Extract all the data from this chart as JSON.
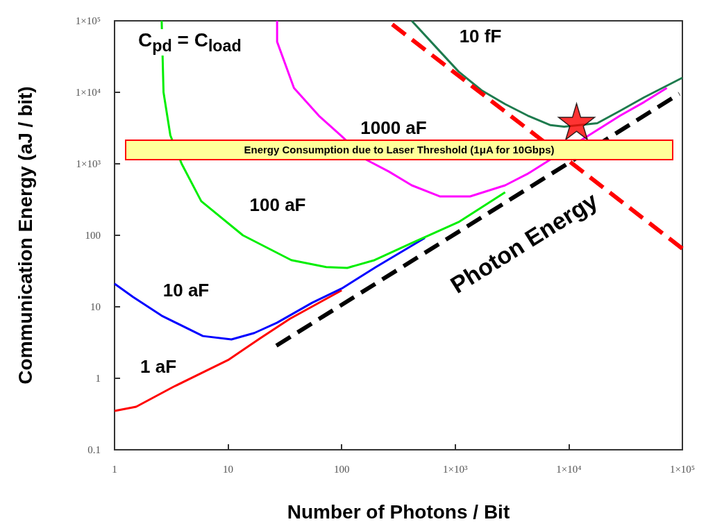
{
  "chart_data": {
    "type": "line",
    "xlabel": "Number of Photons / Bit",
    "ylabel": "Communication Energy (aJ / bit)",
    "log": "xy",
    "grid": false,
    "marker": "none",
    "line_style": "solid",
    "xlim": [
      1,
      100000
    ],
    "ylim": [
      0.1,
      100000
    ],
    "xticks": [
      1,
      10,
      100,
      {
        "value": 1000,
        "label": "1×10³"
      },
      {
        "value": 10000,
        "label": "1×10⁴"
      },
      {
        "value": 100000,
        "label": "1×10⁵"
      }
    ],
    "yticks": [
      0.1,
      1,
      10,
      100,
      {
        "value": 1000,
        "label": "1×10³"
      },
      {
        "value": 10000,
        "label": "1×10⁴"
      },
      {
        "value": 100000,
        "label": "1×10⁵"
      }
    ],
    "series": [
      {
        "color": "#ff0000",
        "x": [
          1,
          1.55,
          3.3,
          10,
          19,
          35,
          100
        ],
        "values": [
          0.35,
          0.4,
          0.76,
          1.8,
          3.6,
          6.8,
          17
        ]
      },
      {
        "color": "#0000ff",
        "x": [
          1,
          1.46,
          2.6,
          6,
          10.7,
          17,
          27,
          55,
          100,
          200,
          540
        ],
        "values": [
          21,
          13.7,
          7.5,
          3.9,
          3.5,
          4.3,
          6,
          11.4,
          18,
          36,
          92
        ]
      },
      {
        "color": "#00ee00",
        "x": [
          2.6,
          2.7,
          3.1,
          3.9,
          5.8,
          13.5,
          36,
          73,
          112,
          195,
          414,
          1070,
          2750
        ],
        "values": [
          100000,
          10000,
          2500,
          1000,
          300,
          100,
          45,
          36,
          35,
          45,
          78,
          153,
          400
        ]
      },
      {
        "color": "#ff00ff",
        "x": [
          27,
          27,
          38,
          63,
          101,
          163,
          260,
          414,
          730,
          1350,
          2750,
          4370,
          28200,
          46000,
          73000
        ],
        "values": [
          100000,
          51000,
          11500,
          4700,
          2400,
          1150,
          780,
          500,
          350,
          350,
          500,
          730,
          4700,
          7300,
          11500
        ]
      },
      {
        "color": "#1e7b4e",
        "x": [
          414,
          670,
          1070,
          1700,
          2750,
          4370,
          6900,
          9100,
          17800,
          28200,
          46000,
          100000
        ],
        "values": [
          100000,
          43600,
          19500,
          10700,
          6840,
          4700,
          3470,
          3300,
          3700,
          5500,
          8500,
          16000
        ]
      },
      {
        "color": "#000000",
        "line_style": "dashed",
        "x": [
          26.6,
          94000
        ],
        "values": [
          2.86,
          9550
        ]
      },
      {
        "color": "#ff0000",
        "line_style": "dashed",
        "x": [
          279,
          100000
        ],
        "values": [
          89000,
          65
        ]
      },
      {
        "type": "scatter",
        "marker": "star",
        "color": "#ff0000",
        "x": [
          11700
        ],
        "values": [
          3900
        ]
      }
    ],
    "annotations": [
      "C$_{pd}$ = C$_{load}$",
      "Energy Consumption due to Laser Threshold (1μA for 10Gbps)",
      "10 fF",
      "1000 aF",
      "100 aF",
      "10 aF",
      "1 aF",
      "Photon Energy"
    ]
  }
}
